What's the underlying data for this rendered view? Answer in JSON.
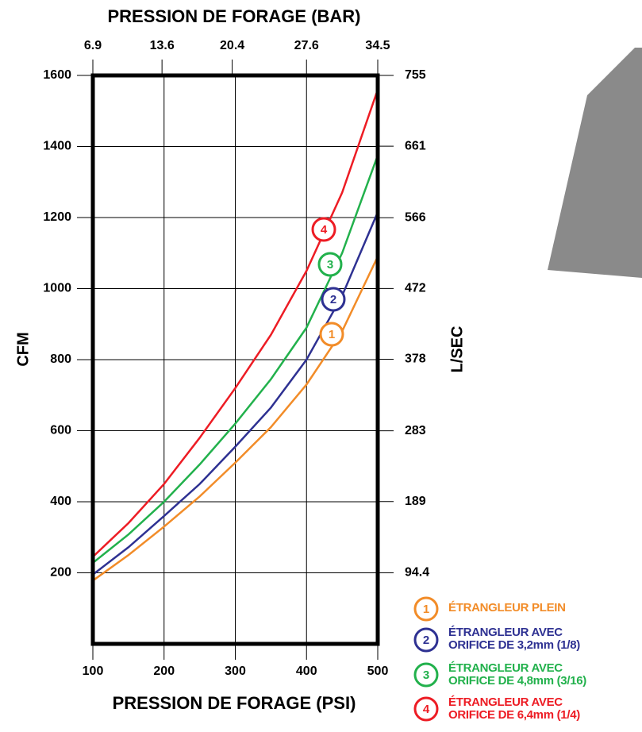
{
  "chart_data": {
    "type": "line",
    "title": "PRESSION DE FORAGE (BAR)",
    "x_label": "PRESSION DE FORAGE (PSI)",
    "y_label": "CFM",
    "y2_label": "L/SEC",
    "x": [
      100,
      150,
      200,
      250,
      300,
      350,
      400,
      450,
      500
    ],
    "xlim": [
      100,
      500
    ],
    "xticks": [
      100,
      200,
      300,
      400,
      500
    ],
    "x2lim": [
      6.9,
      34.5
    ],
    "x2ticks": [
      6.9,
      13.6,
      20.4,
      27.6,
      34.5
    ],
    "ylim": [
      0,
      1600
    ],
    "yticks": [
      200,
      400,
      600,
      800,
      1000,
      1200,
      1400,
      1600
    ],
    "y2lim": [
      0,
      755
    ],
    "y2ticks": [
      94.4,
      189,
      283,
      378,
      472,
      566,
      661,
      755
    ],
    "grid": true,
    "series": [
      {
        "label": "1",
        "name": "ÉTRANGLEUR PLEIN",
        "color": "#f28c28",
        "values": [
          178,
          250,
          330,
          415,
          510,
          610,
          730,
          880,
          1090
        ]
      },
      {
        "label": "2",
        "name": "ÉTRANGLEUR AVEC\nORIFICE DE 3,2mm (1/8)",
        "color": "#2e3192",
        "values": [
          195,
          272,
          360,
          450,
          555,
          665,
          800,
          980,
          1215
        ]
      },
      {
        "label": "3",
        "name": "ÉTRANGLEUR AVEC\nORIFICE DE 4,8mm (3/16)",
        "color": "#22b14c",
        "values": [
          228,
          308,
          400,
          505,
          620,
          745,
          890,
          1100,
          1375
        ]
      },
      {
        "label": "4",
        "name": "ÉTRANGLEUR AVEC\nORIFICE DE 6,4mm (1/4)",
        "color": "#ed1c24",
        "values": [
          245,
          340,
          450,
          580,
          720,
          870,
          1050,
          1270,
          1560
        ]
      }
    ]
  }
}
